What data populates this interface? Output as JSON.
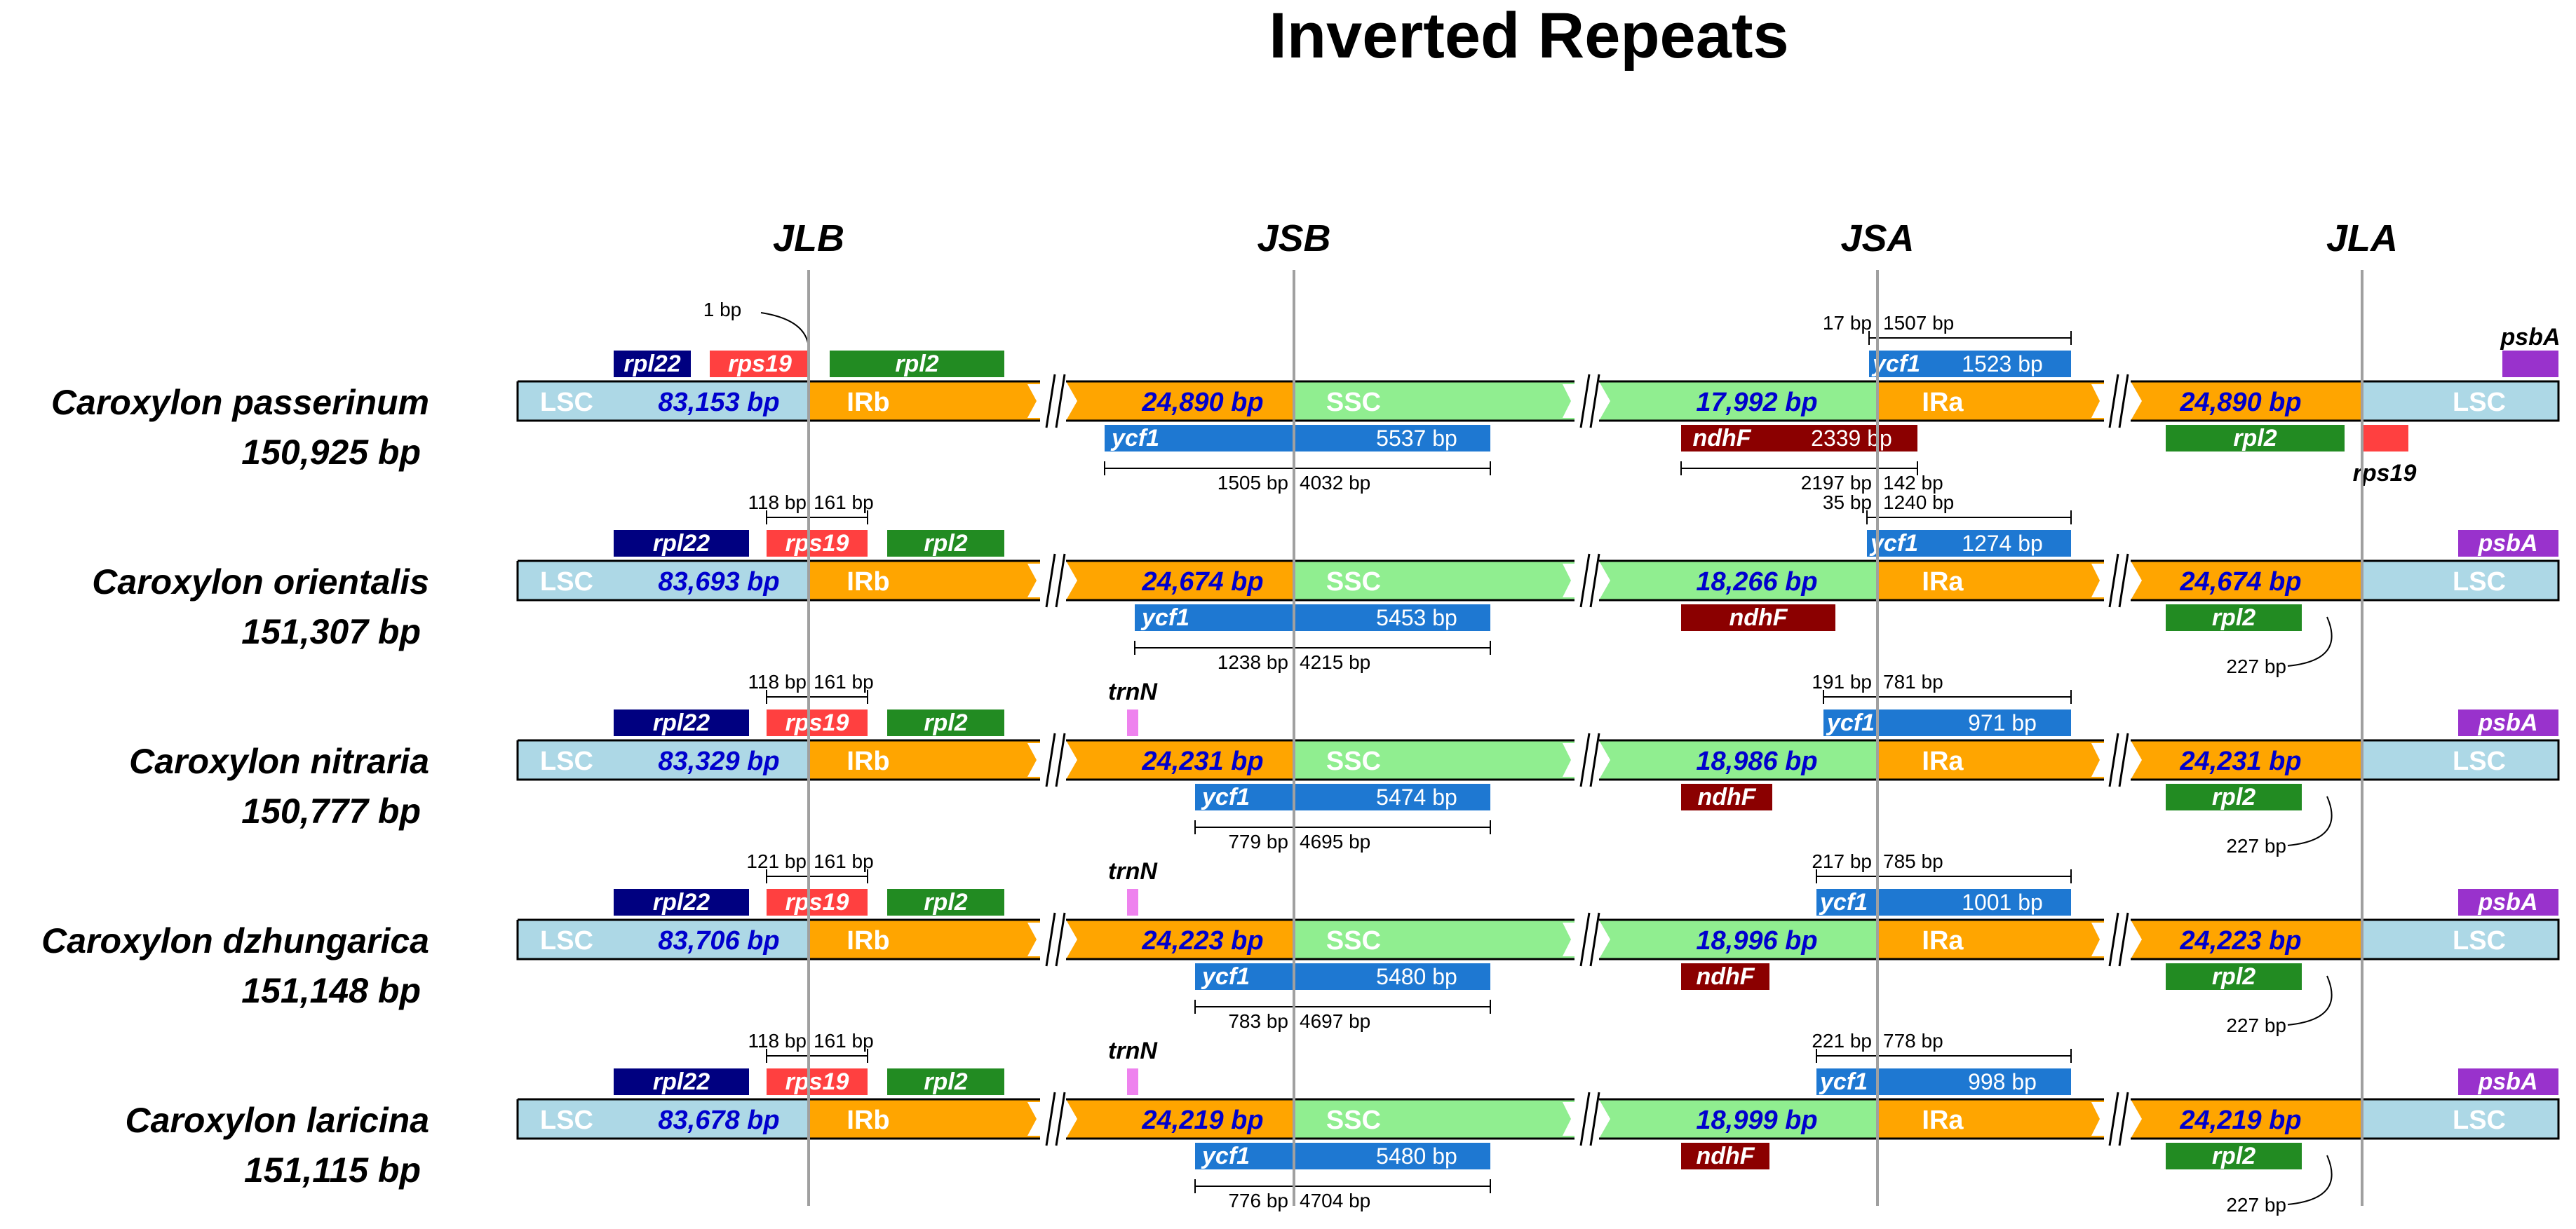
{
  "title": "Inverted Repeats",
  "junctions": [
    "JLB",
    "JSB",
    "JSA",
    "JLA"
  ],
  "colors": {
    "lsc": "#add8e6",
    "irb": "#ffa500",
    "ssc": "#90ee90",
    "rpl22": "#000080",
    "rps19": "#ff4040",
    "rpl2": "#228b22",
    "ycf1": "#1e78d2",
    "ndhF": "#8b0000",
    "trnN": "#ee82ee",
    "psbA": "#9932cc",
    "region_number": "#0000cd",
    "junction_line": "#a0a0a0"
  },
  "labels": {
    "lsc": "LSC",
    "irb": "IRb",
    "ssc": "SSC",
    "ira": "IRa"
  },
  "species": [
    {
      "name": "Caroxylon passerinum",
      "size": "150,925 bp",
      "lsc_len": "83,153 bp",
      "irb_len": "24,890 bp",
      "ssc_len": "17,992 bp",
      "ira_len": "24,890 bp",
      "rpl22": "rpl22",
      "rps19": "rps19",
      "rpl2_top": "rpl2",
      "ycf1_top": "ycf1",
      "ycf1_top_len": "1523 bp",
      "ycf1_bot": "ycf1",
      "ycf1_bot_len": "5537 bp",
      "ndhF": "ndhF",
      "ndhF_len": "2339 bp",
      "rpl2_bot": "rpl2",
      "psbA": "psbA",
      "rps19_end": "rps19",
      "jlb_note": "1 bp",
      "jsb_left": "1505 bp",
      "jsb_right": "4032 bp",
      "jsa_left": "17 bp",
      "jsa_right": "1507 bp",
      "ndhF_left": "2197 bp",
      "ndhF_right": "142 bp"
    },
    {
      "name": "Caroxylon orientalis",
      "size": "151,307 bp",
      "lsc_len": "83,693 bp",
      "irb_len": "24,674 bp",
      "ssc_len": "18,266 bp",
      "ira_len": "24,674 bp",
      "rpl22": "rpl22",
      "rps19": "rps19",
      "rpl2_top": "rpl2",
      "ycf1_top": "ycf1",
      "ycf1_top_len": "1274 bp",
      "ycf1_bot": "ycf1",
      "ycf1_bot_len": "5453 bp",
      "ndhF": "ndhF",
      "rpl2_bot": "rpl2",
      "psbA": "psbA",
      "jlb_left": "118 bp",
      "jlb_right": "161 bp",
      "jsb_left": "1238 bp",
      "jsb_right": "4215 bp",
      "jsa_left": "35 bp",
      "jsa_right": "1240 bp",
      "jla_note": "227 bp"
    },
    {
      "name": "Caroxylon nitraria",
      "size": "150,777 bp",
      "lsc_len": "83,329 bp",
      "irb_len": "24,231 bp",
      "ssc_len": "18,986 bp",
      "ira_len": "24,231 bp",
      "rpl22": "rpl22",
      "rps19": "rps19",
      "rpl2_top": "rpl2",
      "trnN": "trnN",
      "ycf1_top": "ycf1",
      "ycf1_top_len": "971 bp",
      "ycf1_bot": "ycf1",
      "ycf1_bot_len": "5474 bp",
      "ndhF": "ndhF",
      "rpl2_bot": "rpl2",
      "psbA": "psbA",
      "jlb_left": "118 bp",
      "jlb_right": "161 bp",
      "jsb_left": "779 bp",
      "jsb_right": "4695 bp",
      "jsa_left": "191 bp",
      "jsa_right": "781 bp",
      "jla_note": "227 bp"
    },
    {
      "name": "Caroxylon dzhungarica",
      "size": "151,148 bp",
      "lsc_len": "83,706 bp",
      "irb_len": "24,223 bp",
      "ssc_len": "18,996 bp",
      "ira_len": "24,223 bp",
      "rpl22": "rpl22",
      "rps19": "rps19",
      "rpl2_top": "rpl2",
      "trnN": "trnN",
      "ycf1_top": "ycf1",
      "ycf1_top_len": "1001 bp",
      "ycf1_bot": "ycf1",
      "ycf1_bot_len": "5480 bp",
      "ndhF": "ndhF",
      "rpl2_bot": "rpl2",
      "psbA": "psbA",
      "jlb_left": "121 bp",
      "jlb_right": "161 bp",
      "jsb_left": "783 bp",
      "jsb_right": "4697 bp",
      "jsa_left": "217 bp",
      "jsa_right": "785 bp",
      "jla_note": "227 bp"
    },
    {
      "name": "Caroxylon laricina",
      "size": "151,115 bp",
      "lsc_len": "83,678 bp",
      "irb_len": "24,219 bp",
      "ssc_len": "18,999 bp",
      "ira_len": "24,219 bp",
      "rpl22": "rpl22",
      "rps19": "rps19",
      "rpl2_top": "rpl2",
      "trnN": "trnN",
      "ycf1_top": "ycf1",
      "ycf1_top_len": "998 bp",
      "ycf1_bot": "ycf1",
      "ycf1_bot_len": "5480 bp",
      "ndhF": "ndhF",
      "rpl2_bot": "rpl2",
      "psbA": "psbA",
      "jlb_left": "118 bp",
      "jlb_right": "161 bp",
      "jsb_left": "776 bp",
      "jsb_right": "4704 bp",
      "jsa_left": "221 bp",
      "jsa_right": "778 bp",
      "jla_note": "227 bp"
    }
  ]
}
